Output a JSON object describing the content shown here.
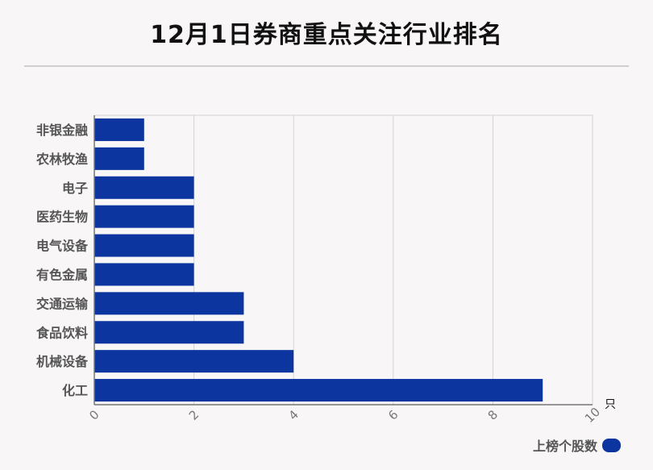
{
  "chart_data": {
    "type": "bar",
    "orientation": "horizontal",
    "title": "12月1日券商重点关注行业排名",
    "categories": [
      "非银金融",
      "农林牧渔",
      "电子",
      "医药生物",
      "电气设备",
      "有色金属",
      "交通运输",
      "食品饮料",
      "机械设备",
      "化工"
    ],
    "series": [
      {
        "name": "上榜个股数",
        "values": [
          1,
          1,
          2,
          2,
          2,
          2,
          3,
          3,
          4,
          9
        ],
        "color": "#0d35a0"
      }
    ],
    "xlim": [
      0,
      10
    ],
    "xticks": [
      0,
      2,
      4,
      6,
      8,
      10
    ],
    "xunit": "只",
    "grid": true,
    "legend_position": "bottom-right"
  }
}
